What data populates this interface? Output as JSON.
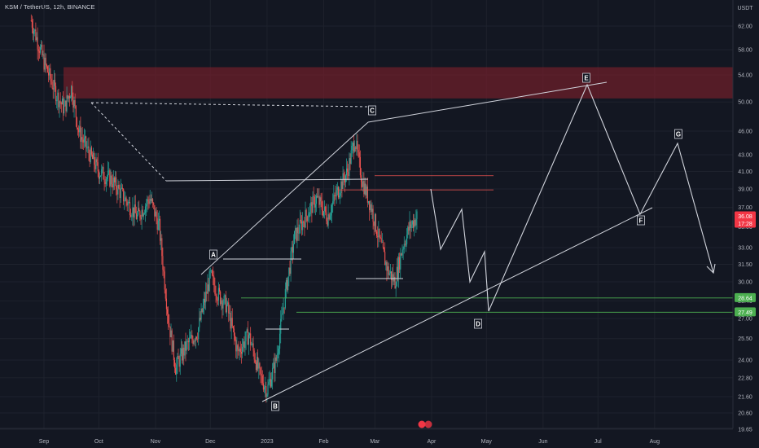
{
  "header": {
    "symbol": "KSM / TetherUS, 12h, BINANCE"
  },
  "axis": {
    "currency": "USDT",
    "y_ticks": [
      "62.00",
      "58.00",
      "54.00",
      "50.00",
      "46.00",
      "43.00",
      "41.00",
      "39.00",
      "37.00",
      "35.00",
      "33.00",
      "31.50",
      "30.00",
      "28.40",
      "27.00",
      "25.50",
      "24.00",
      "22.80",
      "21.60",
      "20.60",
      "19.65"
    ],
    "x_ticks": [
      "Sep",
      "Oct",
      "Nov",
      "Dec",
      "2023",
      "Feb",
      "Mar",
      "Apr",
      "May",
      "Jun",
      "Jul",
      "Aug"
    ]
  },
  "price_badges": [
    {
      "text": "36.08",
      "sub": "17:28",
      "color": "#f23645"
    },
    {
      "text": "28.64",
      "color": "#4caf50"
    },
    {
      "text": "27.49",
      "color": "#4caf50"
    }
  ],
  "wave_labels": [
    "A",
    "B",
    "C",
    "D",
    "E",
    "F",
    "G"
  ],
  "colors": {
    "up": "#26a69a",
    "down": "#ef5350",
    "zone": "#7a1f2b",
    "line": "#d1d4dc",
    "green_line": "#4caf50"
  },
  "chart_data": {
    "type": "candlestick",
    "title": "KSM / TetherUS, 12h, BINANCE",
    "ylabel": "USDT",
    "y_scale": "log",
    "ylim": [
      19.65,
      64
    ],
    "x": [
      "Sep",
      "Oct",
      "Nov",
      "Dec",
      "2023",
      "Feb",
      "Mar",
      "Apr",
      "May",
      "Jun",
      "Jul",
      "Aug"
    ],
    "close_path": [
      [
        "2022-08-25",
        63
      ],
      [
        "2022-09-01",
        56
      ],
      [
        "2022-09-08",
        51
      ],
      [
        "2022-09-12",
        49
      ],
      [
        "2022-09-16",
        52
      ],
      [
        "2022-09-20",
        46
      ],
      [
        "2022-09-25",
        43.5
      ],
      [
        "2022-10-01",
        41
      ],
      [
        "2022-10-08",
        40
      ],
      [
        "2022-10-15",
        38
      ],
      [
        "2022-10-22",
        36
      ],
      [
        "2022-10-29",
        38
      ],
      [
        "2022-11-03",
        35
      ],
      [
        "2022-11-08",
        27
      ],
      [
        "2022-11-12",
        23.5
      ],
      [
        "2022-11-18",
        25
      ],
      [
        "2022-11-24",
        26
      ],
      [
        "2022-12-01",
        30.5
      ],
      [
        "2022-12-05",
        29
      ],
      [
        "2022-12-10",
        28
      ],
      [
        "2022-12-16",
        24.5
      ],
      [
        "2022-12-22",
        25.8
      ],
      [
        "2022-12-28",
        23
      ],
      [
        "2023-01-01",
        22
      ],
      [
        "2023-01-06",
        24
      ],
      [
        "2023-01-11",
        29
      ],
      [
        "2023-01-16",
        34
      ],
      [
        "2023-01-22",
        36
      ],
      [
        "2023-01-28",
        38
      ],
      [
        "2023-02-03",
        36
      ],
      [
        "2023-02-08",
        38.5
      ],
      [
        "2023-02-14",
        41
      ],
      [
        "2023-02-18",
        45
      ],
      [
        "2023-02-22",
        40
      ],
      [
        "2023-02-27",
        37
      ],
      [
        "2023-03-03",
        34
      ],
      [
        "2023-03-08",
        31
      ],
      [
        "2023-03-12",
        30
      ],
      [
        "2023-03-16",
        33
      ],
      [
        "2023-03-20",
        35
      ],
      [
        "2023-03-24",
        36.08
      ]
    ],
    "last_price": 36.08,
    "zones": [
      {
        "type": "resistance",
        "from": 50.5,
        "to": 55.2
      }
    ],
    "horizontal_levels": [
      {
        "value": 28.64,
        "color": "green"
      },
      {
        "value": 27.49,
        "color": "green"
      },
      {
        "value": 40.5,
        "color": "red"
      },
      {
        "value": 38.9,
        "color": "red"
      }
    ],
    "wave_points": [
      {
        "label": "A",
        "date": "2022-11-29",
        "price": 31.5
      },
      {
        "label": "B",
        "date": "2023-01-01",
        "price": 21.6
      },
      {
        "label": "C",
        "date": "2023-02-18",
        "price": 47.5
      },
      {
        "label": "D",
        "date": "2023-04-22",
        "price": 27.3
      },
      {
        "label": "E",
        "date": "2023-06-14",
        "price": 53.0
      },
      {
        "label": "F",
        "date": "2023-07-16",
        "price": 35.5
      },
      {
        "label": "G",
        "date": "2023-07-31",
        "price": 44.0
      }
    ]
  }
}
